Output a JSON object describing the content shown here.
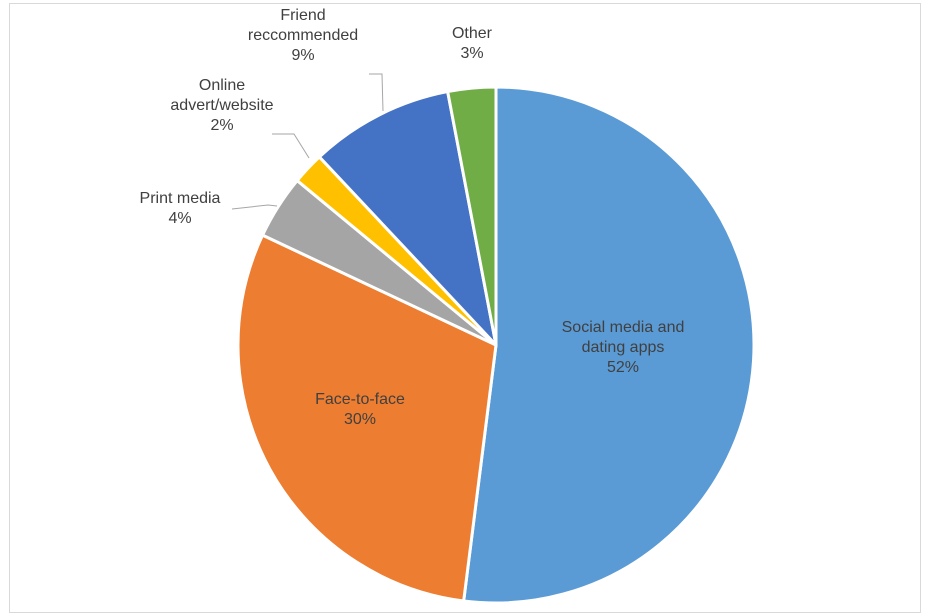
{
  "chart_data": {
    "type": "pie",
    "title": "",
    "legend": "none",
    "slices": [
      {
        "name": "Social media and dating apps",
        "label_lines": [
          "Social media and",
          "dating apps"
        ],
        "value": 52,
        "value_label": "52%",
        "color": "#5b9bd5"
      },
      {
        "name": "Face-to-face",
        "label_lines": [
          "Face-to-face"
        ],
        "value": 30,
        "value_label": "30%",
        "color": "#ed7d31"
      },
      {
        "name": "Print media",
        "label_lines": [
          "Print media"
        ],
        "value": 4,
        "value_label": "4%",
        "color": "#a5a5a5"
      },
      {
        "name": "Online advert/website",
        "label_lines": [
          "Online",
          "advert/website"
        ],
        "value": 2,
        "value_label": "2%",
        "color": "#ffc000"
      },
      {
        "name": "Friend reccommended",
        "label_lines": [
          "Friend",
          "reccommended"
        ],
        "value": 9,
        "value_label": "9%",
        "color": "#4472c4"
      },
      {
        "name": "Other",
        "label_lines": [
          "Other"
        ],
        "value": 3,
        "value_label": "3%",
        "color": "#70ad47"
      }
    ]
  }
}
